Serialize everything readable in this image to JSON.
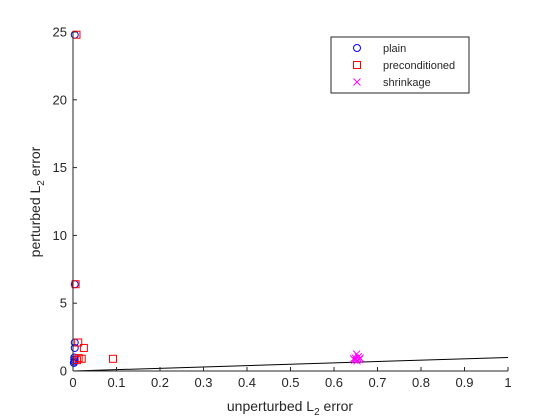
{
  "chart_data": {
    "type": "scatter",
    "xlabel": {
      "main": "unperturbed L",
      "sub": "2",
      "tail": " error"
    },
    "ylabel": {
      "main": "perturbed L",
      "sub": "2",
      "tail": " error"
    },
    "xlim": [
      0,
      1
    ],
    "ylim": [
      0,
      25
    ],
    "x_ticks": [
      "0",
      "0.1",
      "0.2",
      "0.3",
      "0.4",
      "0.5",
      "0.6",
      "0.7",
      "0.8",
      "0.9",
      "1"
    ],
    "y_ticks": [
      "0",
      "5",
      "10",
      "15",
      "20",
      "25"
    ],
    "x_tick_values": [
      0,
      0.1,
      0.2,
      0.3,
      0.4,
      0.5,
      0.6,
      0.7,
      0.8,
      0.9,
      1
    ],
    "y_tick_values": [
      0,
      5,
      10,
      15,
      20,
      25
    ],
    "grid": false,
    "legend_position": "top-right",
    "series": [
      {
        "name": "plain",
        "marker": "circle",
        "color": "#0000ff",
        "points": [
          [
            0.004,
            24.8
          ],
          [
            0.004,
            6.4
          ],
          [
            0.004,
            2.1
          ],
          [
            0.004,
            1.7
          ],
          [
            0.003,
            1.0
          ],
          [
            0.003,
            0.85
          ],
          [
            0.003,
            0.7
          ],
          [
            0.002,
            0.6
          ]
        ]
      },
      {
        "name": "preconditioned",
        "marker": "square",
        "color": "#ff0000",
        "points": [
          [
            0.008,
            24.8
          ],
          [
            0.006,
            6.4
          ],
          [
            0.012,
            2.1
          ],
          [
            0.025,
            1.7
          ],
          [
            0.02,
            0.9
          ],
          [
            0.013,
            0.95
          ],
          [
            0.009,
            0.8
          ],
          [
            0.092,
            0.9
          ]
        ]
      },
      {
        "name": "shrinkage",
        "marker": "x",
        "color": "#ff00ff",
        "points": [
          [
            0.649,
            0.95
          ],
          [
            0.652,
            1.25
          ],
          [
            0.656,
            1.05
          ],
          [
            0.648,
            0.8
          ],
          [
            0.658,
            0.85
          ],
          [
            0.653,
            0.75
          ],
          [
            0.66,
            0.95
          ],
          [
            0.645,
            0.9
          ]
        ]
      }
    ],
    "reference_line": {
      "color": "#000000",
      "x": [
        0,
        1
      ],
      "y": [
        0,
        1
      ]
    }
  }
}
